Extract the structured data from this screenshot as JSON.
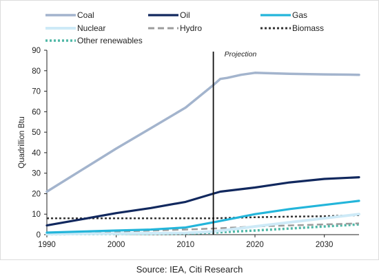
{
  "chart_data": {
    "type": "line",
    "title": "",
    "ylabel": "Quadrillion Btu",
    "xlabel": "",
    "xlim": [
      1990,
      2035
    ],
    "ylim": [
      0,
      90
    ],
    "x_ticks": [
      1990,
      2000,
      2010,
      2020,
      2030
    ],
    "y_ticks": [
      0,
      10,
      20,
      30,
      40,
      50,
      60,
      70,
      80,
      90
    ],
    "grid": false,
    "legend_position": "top",
    "annotation": {
      "text": "Projection",
      "x": 2014
    },
    "series": [
      {
        "name": "Coal",
        "color": "#a3b4cd",
        "style": "solid",
        "width": 3.5,
        "points": [
          [
            1990,
            21
          ],
          [
            1995,
            31.5
          ],
          [
            2000,
            42
          ],
          [
            2005,
            52
          ],
          [
            2010,
            62
          ],
          [
            2014,
            73
          ],
          [
            2015,
            76
          ],
          [
            2016,
            76.5
          ],
          [
            2018,
            78
          ],
          [
            2020,
            79
          ],
          [
            2022,
            78.8
          ],
          [
            2025,
            78.5
          ],
          [
            2030,
            78.2
          ],
          [
            2035,
            78
          ]
        ]
      },
      {
        "name": "Oil",
        "color": "#11285e",
        "style": "solid",
        "width": 3.2,
        "points": [
          [
            1990,
            4.5
          ],
          [
            1995,
            7.5
          ],
          [
            2000,
            10.5
          ],
          [
            2005,
            13
          ],
          [
            2010,
            16
          ],
          [
            2014,
            20
          ],
          [
            2015,
            21
          ],
          [
            2020,
            23
          ],
          [
            2025,
            25.5
          ],
          [
            2030,
            27.2
          ],
          [
            2035,
            28
          ]
        ]
      },
      {
        "name": "Gas",
        "color": "#23b5da",
        "style": "solid",
        "width": 3.2,
        "points": [
          [
            1990,
            1
          ],
          [
            1995,
            1.5
          ],
          [
            2000,
            2
          ],
          [
            2005,
            2.5
          ],
          [
            2010,
            3.5
          ],
          [
            2014,
            6
          ],
          [
            2017,
            8
          ],
          [
            2020,
            10
          ],
          [
            2025,
            12.5
          ],
          [
            2030,
            14.5
          ],
          [
            2035,
            16.5
          ]
        ]
      },
      {
        "name": "Nuclear",
        "color": "#cdeaf7",
        "style": "solid",
        "width": 4,
        "points": [
          [
            1990,
            0.3
          ],
          [
            2000,
            0.5
          ],
          [
            2010,
            0.8
          ],
          [
            2014,
            1.5
          ],
          [
            2020,
            4
          ],
          [
            2025,
            6
          ],
          [
            2030,
            8
          ],
          [
            2035,
            10
          ]
        ]
      },
      {
        "name": "Hydro",
        "color": "#9c9c9c",
        "style": "dashed",
        "width": 2.5,
        "points": [
          [
            1990,
            1
          ],
          [
            2000,
            1.5
          ],
          [
            2010,
            2.5
          ],
          [
            2014,
            3
          ],
          [
            2020,
            4
          ],
          [
            2025,
            4.5
          ],
          [
            2030,
            5
          ],
          [
            2035,
            5.5
          ]
        ]
      },
      {
        "name": "Biomass",
        "color": "#333333",
        "style": "dotted",
        "width": 2.5,
        "points": [
          [
            1990,
            8
          ],
          [
            2000,
            8
          ],
          [
            2010,
            8
          ],
          [
            2014,
            8
          ],
          [
            2020,
            8.5
          ],
          [
            2025,
            8.8
          ],
          [
            2030,
            9
          ],
          [
            2035,
            9.5
          ]
        ]
      },
      {
        "name": "Other renewables",
        "color": "#4fb7a6",
        "style": "dotted",
        "width": 3.5,
        "points": [
          [
            1990,
            0.2
          ],
          [
            2000,
            0.3
          ],
          [
            2010,
            0.5
          ],
          [
            2014,
            1
          ],
          [
            2020,
            2
          ],
          [
            2025,
            3
          ],
          [
            2030,
            4
          ],
          [
            2035,
            5
          ]
        ]
      }
    ]
  },
  "source_note": "Source: IEA, Citi Research"
}
